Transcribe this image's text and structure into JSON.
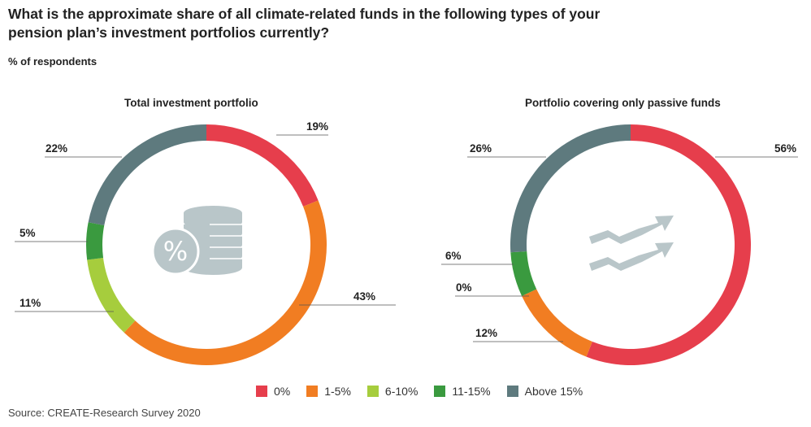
{
  "title": "What is the approximate share of all climate-related funds in the following types of your pension plan’s investment portfolios currently?",
  "subtitle": "% of respondents",
  "source": "Source: CREATE-Research Survey 2020",
  "colors": {
    "0%": "#e63e4c",
    "1-5%": "#f17d22",
    "6-10%": "#a6cd3d",
    "11-15%": "#3a9a3f",
    "Above 15%": "#5e7a7e"
  },
  "icons": [
    "coin-stack-percent-icon",
    "trend-arrows-icon"
  ],
  "chart_data": [
    {
      "type": "pie",
      "title": "Total investment portfolio",
      "categories": [
        "0%",
        "1-5%",
        "6-10%",
        "11-15%",
        "Above 15%"
      ],
      "values": [
        19,
        43,
        11,
        5,
        22
      ],
      "labels": [
        "19%",
        "43%",
        "11%",
        "5%",
        "22%"
      ]
    },
    {
      "type": "pie",
      "title": "Portfolio covering only passive funds",
      "categories": [
        "0%",
        "1-5%",
        "6-10%",
        "11-15%",
        "Above 15%"
      ],
      "values": [
        56,
        12,
        0,
        6,
        26
      ],
      "labels": [
        "56%",
        "12%",
        "0%",
        "6%",
        "26%"
      ]
    }
  ],
  "legend": [
    {
      "label": "0%",
      "color": "#e63e4c"
    },
    {
      "label": "1-5%",
      "color": "#f17d22"
    },
    {
      "label": "6-10%",
      "color": "#a6cd3d"
    },
    {
      "label": "11-15%",
      "color": "#3a9a3f"
    },
    {
      "label": "Above 15%",
      "color": "#5e7a7e"
    }
  ]
}
